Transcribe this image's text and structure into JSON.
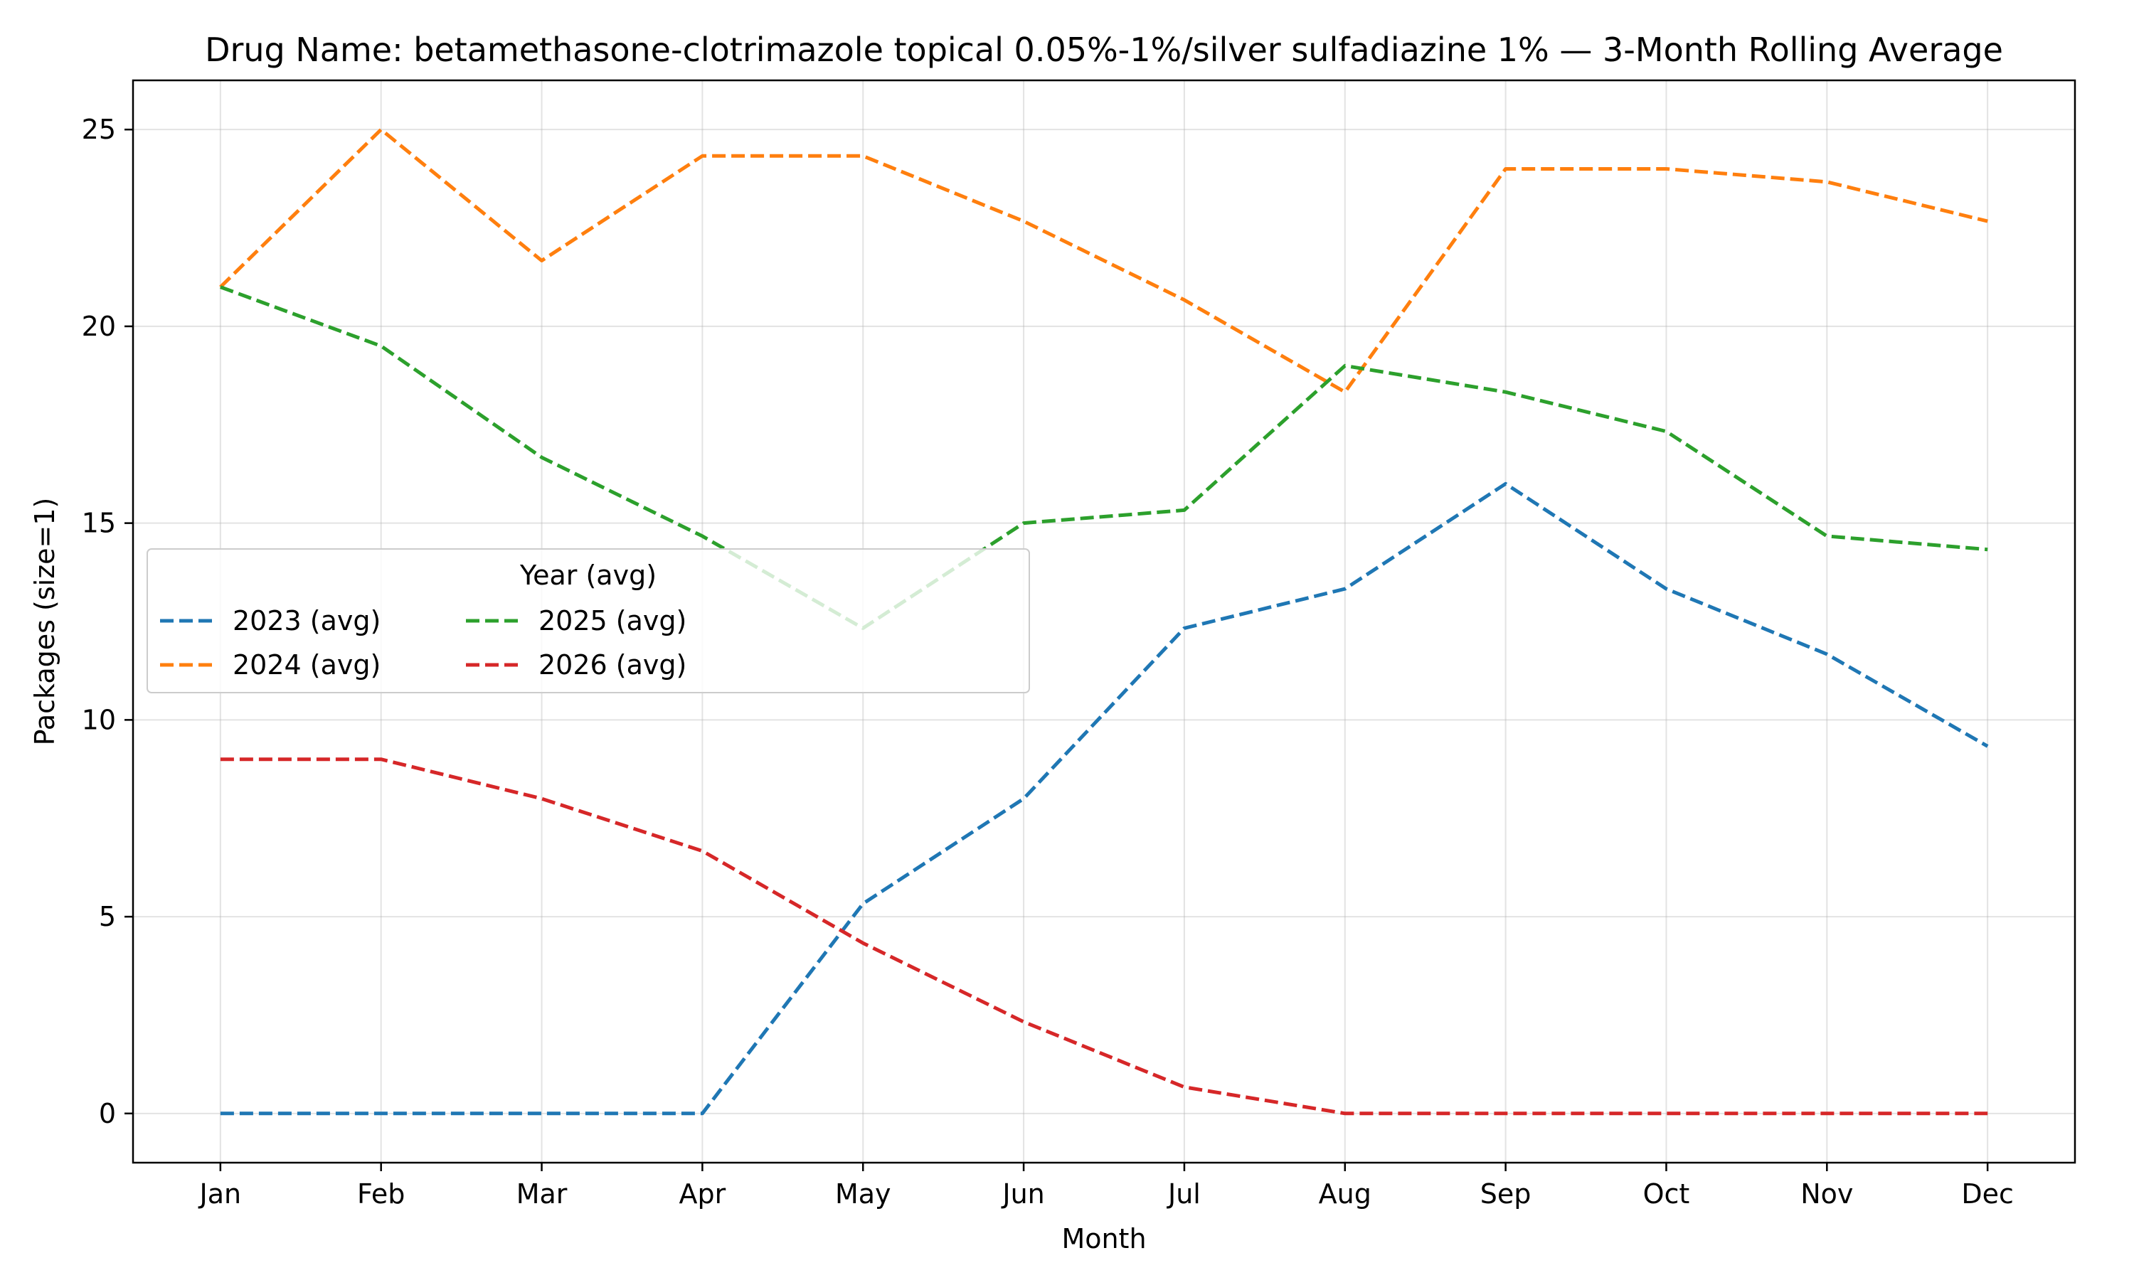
{
  "chart_data": {
    "type": "line",
    "title": "Drug Name: betamethasone-clotrimazole topical 0.05%-1%/silver sulfadiazine 1% — 3-Month Rolling Average",
    "xlabel": "Month",
    "ylabel": "Packages (size=1)",
    "categories": [
      "Jan",
      "Feb",
      "Mar",
      "Apr",
      "May",
      "Jun",
      "Jul",
      "Aug",
      "Sep",
      "Oct",
      "Nov",
      "Dec"
    ],
    "ylim": [
      -1.25,
      26.25
    ],
    "yticks": [
      0,
      5,
      10,
      15,
      20,
      25
    ],
    "grid": true,
    "legend": {
      "title": "Year (avg)",
      "placement": "center-left",
      "columns": 3
    },
    "series": [
      {
        "name": "2023 (avg)",
        "color": "#1f77b4",
        "values": [
          0,
          0,
          0,
          0,
          5.33,
          8.0,
          12.33,
          13.33,
          16.0,
          13.33,
          11.67,
          9.33
        ]
      },
      {
        "name": "2024 (avg)",
        "color": "#ff7f0e",
        "values": [
          21.0,
          25.0,
          21.67,
          24.33,
          24.33,
          22.67,
          20.67,
          18.33,
          24.0,
          24.0,
          23.67,
          22.67
        ]
      },
      {
        "name": "2025 (avg)",
        "color": "#2ca02c",
        "values": [
          21.0,
          19.5,
          16.67,
          14.67,
          12.33,
          15.0,
          15.33,
          19.0,
          18.33,
          17.33,
          14.67,
          14.33
        ]
      },
      {
        "name": "2026 (avg)",
        "color": "#d62728",
        "values": [
          9.0,
          9.0,
          8.0,
          6.67,
          4.33,
          2.33,
          0.67,
          0,
          0,
          0,
          0,
          0
        ]
      }
    ]
  }
}
